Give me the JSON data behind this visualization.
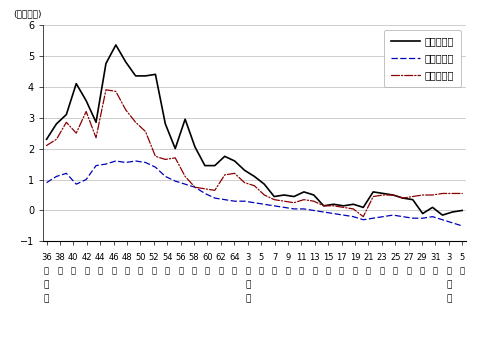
{
  "title_unit": "(単位：％)",
  "legend": [
    "人口増減率",
    "自然増減率",
    "社会増減率"
  ],
  "ylim": [
    -1,
    6
  ],
  "yticks": [
    -1,
    0,
    1,
    2,
    3,
    4,
    5,
    6
  ],
  "tick_labels_num": [
    "36",
    "38",
    "40",
    "42",
    "44",
    "46",
    "48",
    "50",
    "52",
    "54",
    "56",
    "58",
    "60",
    "62",
    "64",
    "3",
    "5",
    "7",
    "9",
    "11",
    "13",
    "15",
    "17",
    "19",
    "21",
    "23",
    "25",
    "27",
    "29",
    "31",
    "3",
    "5"
  ],
  "era_showa": "昭和",
  "era_heisei": "平成",
  "era_reiwa": "令和",
  "nen": "年",
  "pop_rate": [
    2.3,
    2.8,
    3.1,
    4.1,
    3.55,
    2.85,
    4.75,
    5.35,
    4.8,
    4.35,
    4.35,
    4.4,
    2.8,
    2.0,
    2.95,
    2.05,
    1.45,
    1.45,
    1.75,
    1.6,
    1.3,
    1.1,
    0.85,
    0.45,
    0.5,
    0.45,
    0.6,
    0.5,
    0.15,
    0.2,
    0.15,
    0.2,
    0.1,
    0.6,
    0.55,
    0.5,
    0.4,
    0.35,
    -0.1,
    0.1,
    -0.15,
    -0.05,
    0.0
  ],
  "nat_rate": [
    0.9,
    1.1,
    1.2,
    0.85,
    1.0,
    1.45,
    1.5,
    1.6,
    1.55,
    1.6,
    1.55,
    1.4,
    1.1,
    0.95,
    0.85,
    0.75,
    0.55,
    0.4,
    0.35,
    0.3,
    0.3,
    0.25,
    0.2,
    0.15,
    0.1,
    0.05,
    0.05,
    0.0,
    -0.05,
    -0.1,
    -0.15,
    -0.2,
    -0.3,
    -0.25,
    -0.2,
    -0.15,
    -0.2,
    -0.25,
    -0.25,
    -0.2,
    -0.3,
    -0.4,
    -0.5
  ],
  "soc_rate": [
    2.1,
    2.3,
    2.85,
    2.5,
    3.2,
    2.35,
    3.9,
    3.85,
    3.25,
    2.85,
    2.55,
    1.75,
    1.65,
    1.7,
    1.1,
    0.75,
    0.7,
    0.65,
    1.15,
    1.2,
    0.9,
    0.8,
    0.5,
    0.35,
    0.3,
    0.25,
    0.35,
    0.3,
    0.15,
    0.15,
    0.1,
    0.05,
    -0.2,
    0.45,
    0.5,
    0.5,
    0.4,
    0.45,
    0.5,
    0.5,
    0.55,
    0.55,
    0.55
  ],
  "line_color_pop": "#000000",
  "line_color_nat": "#0000bb",
  "line_color_soc": "#8b0000",
  "bg_color": "#ffffff",
  "grid_color": "#bbbbbb"
}
